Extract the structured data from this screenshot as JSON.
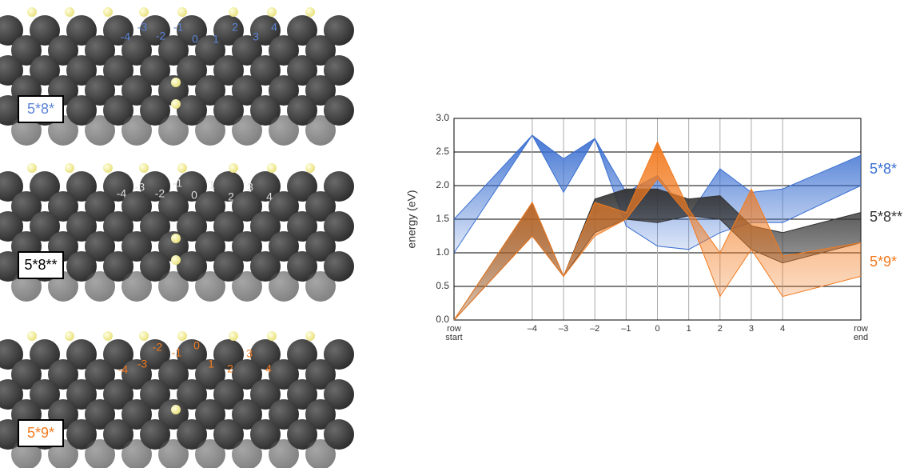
{
  "panels": [
    {
      "label": "5*8*",
      "color": "#5b84d6",
      "site_labels": [
        "-4",
        "-3",
        "-2",
        "-1",
        "0",
        "1",
        "2",
        "3",
        "4"
      ]
    },
    {
      "label": "5*8**",
      "color": "#000000",
      "site_labels": [
        "-4",
        "-3",
        "-2",
        "-1",
        "0",
        "1",
        "2",
        "3",
        "4"
      ]
    },
    {
      "label": "5*9*",
      "color": "#f27a1e",
      "site_labels": [
        "-4",
        "-3",
        "-2",
        "-1",
        "0",
        "1",
        "2",
        "3",
        "4"
      ]
    }
  ],
  "chart_data": {
    "type": "band",
    "ylabel": "energy (eV)",
    "x": [
      -6.5,
      -4,
      -3,
      -2,
      -1,
      0,
      1,
      2,
      3,
      4,
      6.5
    ],
    "xlim": [
      -6.5,
      6.5
    ],
    "xticks": [
      {
        "value": -6.5,
        "label": "row start"
      },
      {
        "value": -4,
        "label": "–4"
      },
      {
        "value": -3,
        "label": "–3"
      },
      {
        "value": -2,
        "label": "–2"
      },
      {
        "value": -1,
        "label": "–1"
      },
      0,
      1,
      2,
      3,
      4,
      {
        "value": 6.5,
        "label": "row end"
      }
    ],
    "ylim": [
      0,
      3
    ],
    "yticks": [
      {
        "value": 0,
        "label": "0.0"
      },
      0.5,
      {
        "value": 1,
        "label": "1.0"
      },
      1.5,
      {
        "value": 2,
        "label": "2.0"
      },
      2.5,
      {
        "value": 3,
        "label": "3.0"
      }
    ],
    "grid": true,
    "series": [
      {
        "name": "5*8*",
        "color": "#3a6fd1",
        "lower": [
          1.0,
          2.75,
          1.9,
          2.7,
          1.4,
          1.1,
          1.05,
          1.3,
          1.45,
          1.45,
          2.0
        ],
        "upper": [
          1.5,
          2.75,
          2.4,
          2.7,
          1.9,
          2.15,
          1.55,
          2.25,
          1.9,
          1.95,
          2.45
        ]
      },
      {
        "name": "5*8**",
        "color": "#333333",
        "lower": [
          0,
          1.25,
          0.65,
          1.3,
          1.5,
          1.45,
          1.55,
          1.5,
          1.05,
          0.85,
          1.15
        ],
        "upper": [
          0,
          1.75,
          0.65,
          1.8,
          1.95,
          1.95,
          1.8,
          1.85,
          1.4,
          1.3,
          1.6
        ]
      },
      {
        "name": "5*9*",
        "color": "#f27a1e",
        "lower": [
          0,
          1.25,
          0.65,
          1.25,
          1.5,
          2.1,
          1.55,
          0.35,
          1.05,
          0.35,
          0.65
        ],
        "upper": [
          0,
          1.75,
          0.65,
          1.75,
          1.6,
          2.65,
          1.65,
          1.0,
          1.95,
          0.95,
          1.15
        ]
      }
    ]
  }
}
